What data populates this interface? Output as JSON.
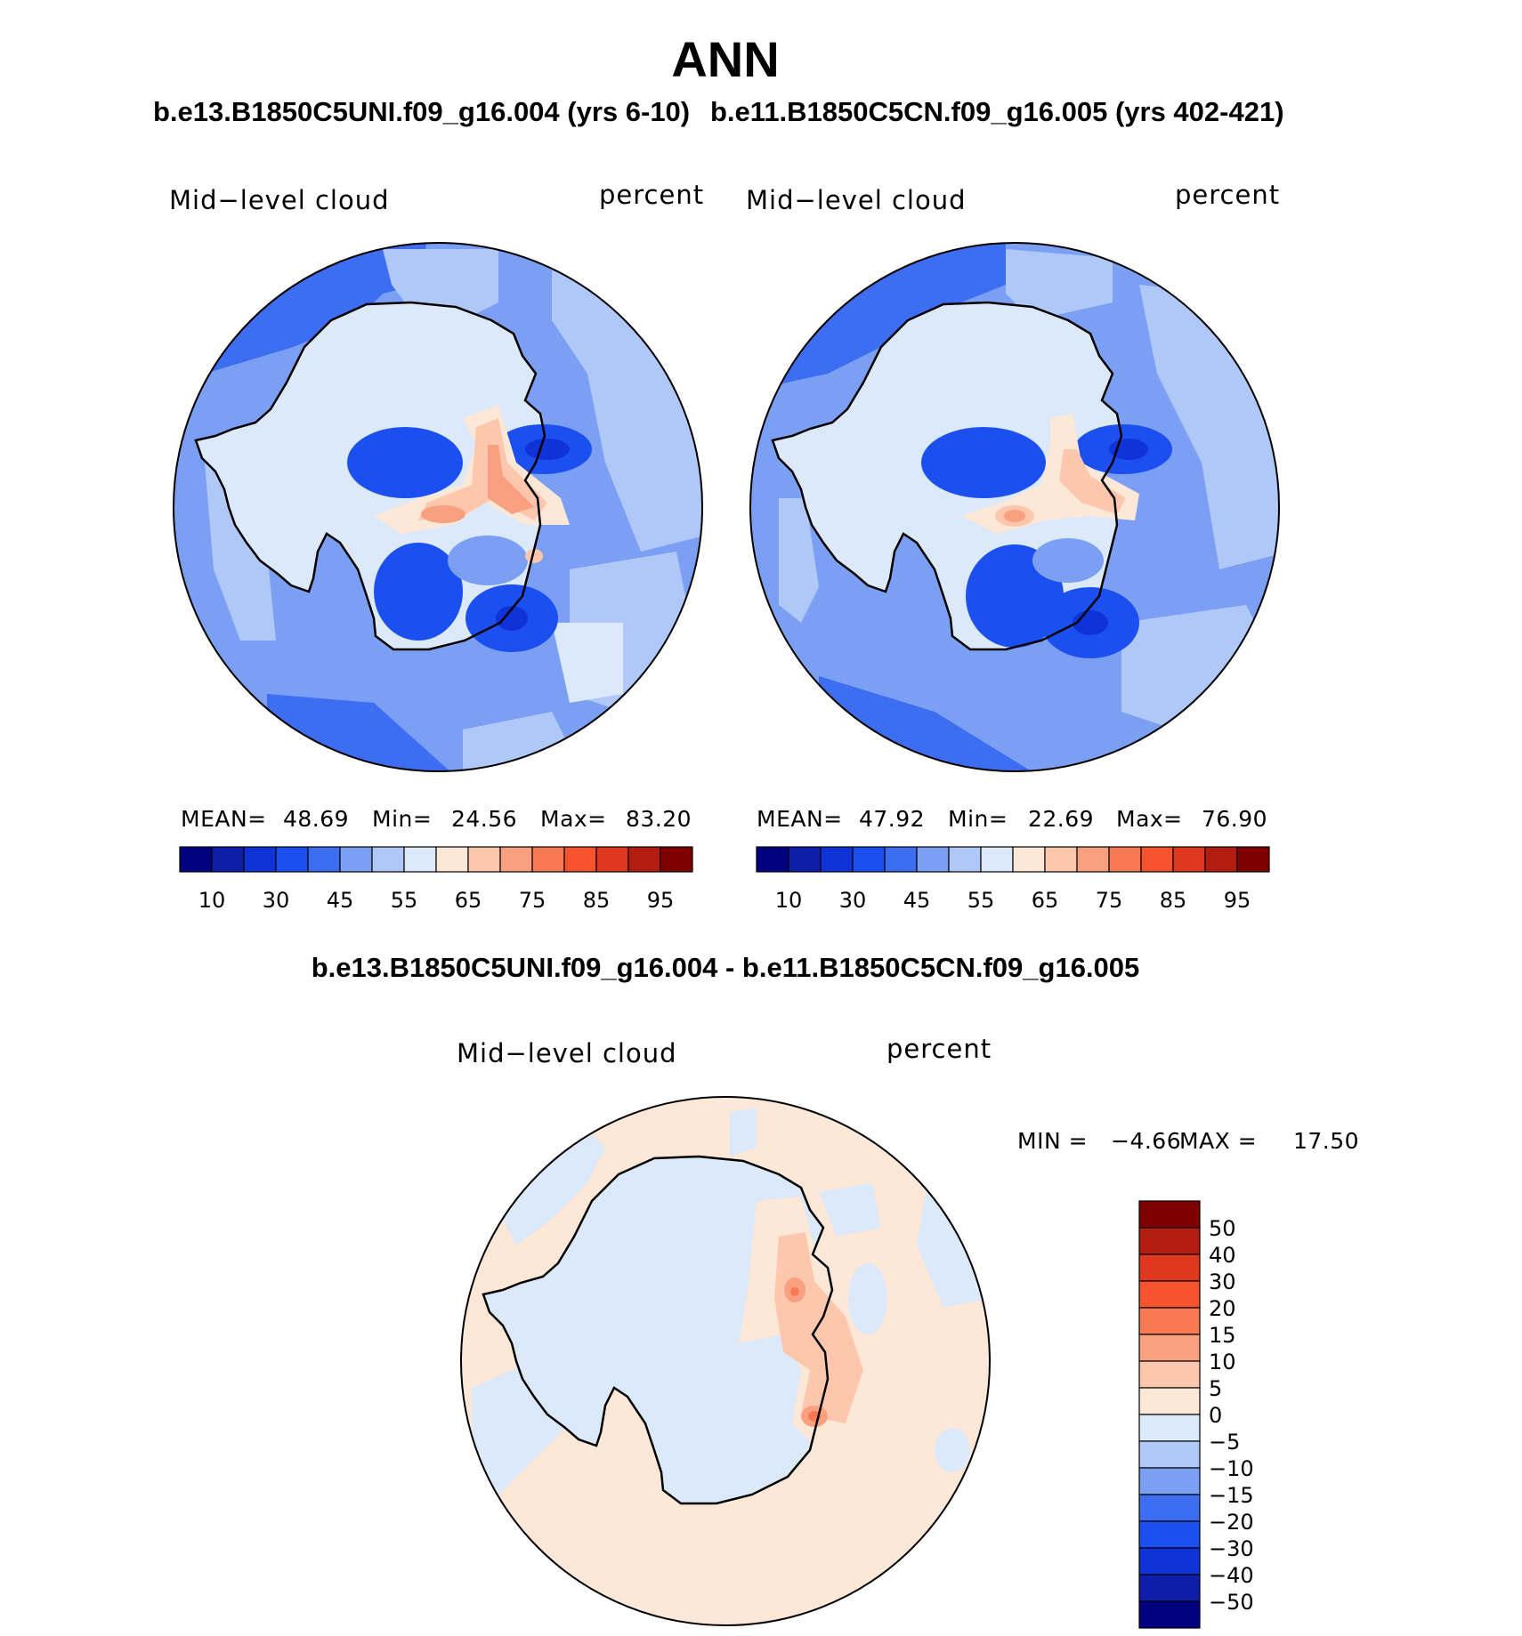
{
  "title": "ANN",
  "panels": [
    {
      "case": "b.e13.B1850C5UNI.f09_g16.004 (yrs 6-10)",
      "variable": "Mid−level cloud",
      "units": "percent",
      "mean_label": "MEAN=",
      "mean": "48.69",
      "min_label": "Min=",
      "min": "24.56",
      "max_label": "Max=",
      "max": "83.20"
    },
    {
      "case": "b.e11.B1850C5CN.f09_g16.005 (yrs 402-421)",
      "variable": "Mid−level cloud",
      "units": "percent",
      "mean_label": "MEAN=",
      "mean": "47.92",
      "min_label": "Min=",
      "min": "22.69",
      "max_label": "Max=",
      "max": "76.90"
    }
  ],
  "colorbar": {
    "colors": [
      "#000080",
      "#0d1fa8",
      "#0f33d6",
      "#1c4ff0",
      "#3d6df0",
      "#7b9ff3",
      "#b0c8f8",
      "#dbe9fb",
      "#fde8d8",
      "#fcc7ad",
      "#f9a080",
      "#f77a52",
      "#f5542f",
      "#e0381e",
      "#b31d10",
      "#7f0000"
    ],
    "tick_labels": [
      "10",
      "30",
      "45",
      "55",
      "65",
      "75",
      "85",
      "95"
    ]
  },
  "difference": {
    "title": "b.e13.B1850C5UNI.f09_g16.004 - b.e11.B1850C5CN.f09_g16.005",
    "variable": "Mid−level cloud",
    "units": "percent",
    "min_label": "MIN =",
    "min": "−4.66",
    "max_label": "MAX =",
    "max": "17.50",
    "colorbar": {
      "colors": [
        "#7f0000",
        "#b31d10",
        "#e0381e",
        "#f5542f",
        "#f77a52",
        "#f9a080",
        "#fcc7ad",
        "#fde8d8",
        "#dbe9fb",
        "#b0c8f8",
        "#7b9ff3",
        "#3d6df0",
        "#1c4ff0",
        "#0f33d6",
        "#0d1fa8",
        "#000080"
      ],
      "tick_labels": [
        "50",
        "40",
        "30",
        "20",
        "15",
        "10",
        "5",
        "0",
        "−5",
        "−10",
        "−15",
        "−20",
        "−30",
        "−40",
        "−50"
      ]
    }
  },
  "map_palette": {
    "ocean_dark": "#3d6df0",
    "ocean_mid": "#7b9ff3",
    "ocean_light": "#b0c8f8",
    "ocean_pale": "#dbe9fb",
    "land_blue": "#1c4ff0",
    "land_deep": "#0f33d6",
    "warm1": "#fde8d8",
    "warm2": "#fcc7ad",
    "warm3": "#f9a080",
    "warm4": "#f77a52"
  }
}
